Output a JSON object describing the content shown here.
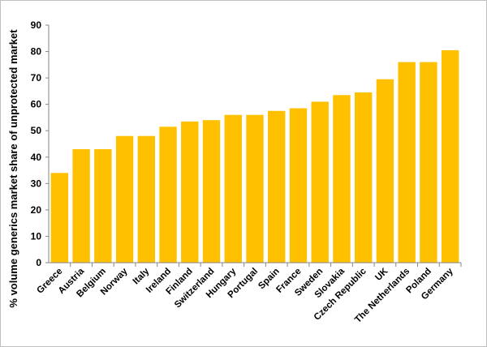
{
  "chart_data": {
    "type": "bar",
    "title": "",
    "xlabel": "",
    "ylabel": "% volume generics market share of unprotected market",
    "ylim": [
      0,
      90
    ],
    "yticks": [
      0,
      10,
      20,
      30,
      40,
      50,
      60,
      70,
      80,
      90
    ],
    "grid": false,
    "legend": "none",
    "bar_color": "#FFC000",
    "categories": [
      "Greece",
      "Austria",
      "Belgium",
      "Norway",
      "Italy",
      "Ireland",
      "Finland",
      "Switzerland",
      "Hungary",
      "Portugal",
      "Spain",
      "France",
      "Sweden",
      "Slovakia",
      "Czech Republic",
      "UK",
      "The Netherlands",
      "Poland",
      "Germany"
    ],
    "values": [
      34,
      43,
      43,
      48,
      48,
      51.5,
      53.5,
      54,
      56,
      56,
      57.5,
      58.5,
      61,
      63.5,
      64.5,
      69.5,
      76,
      76,
      80.5
    ]
  }
}
